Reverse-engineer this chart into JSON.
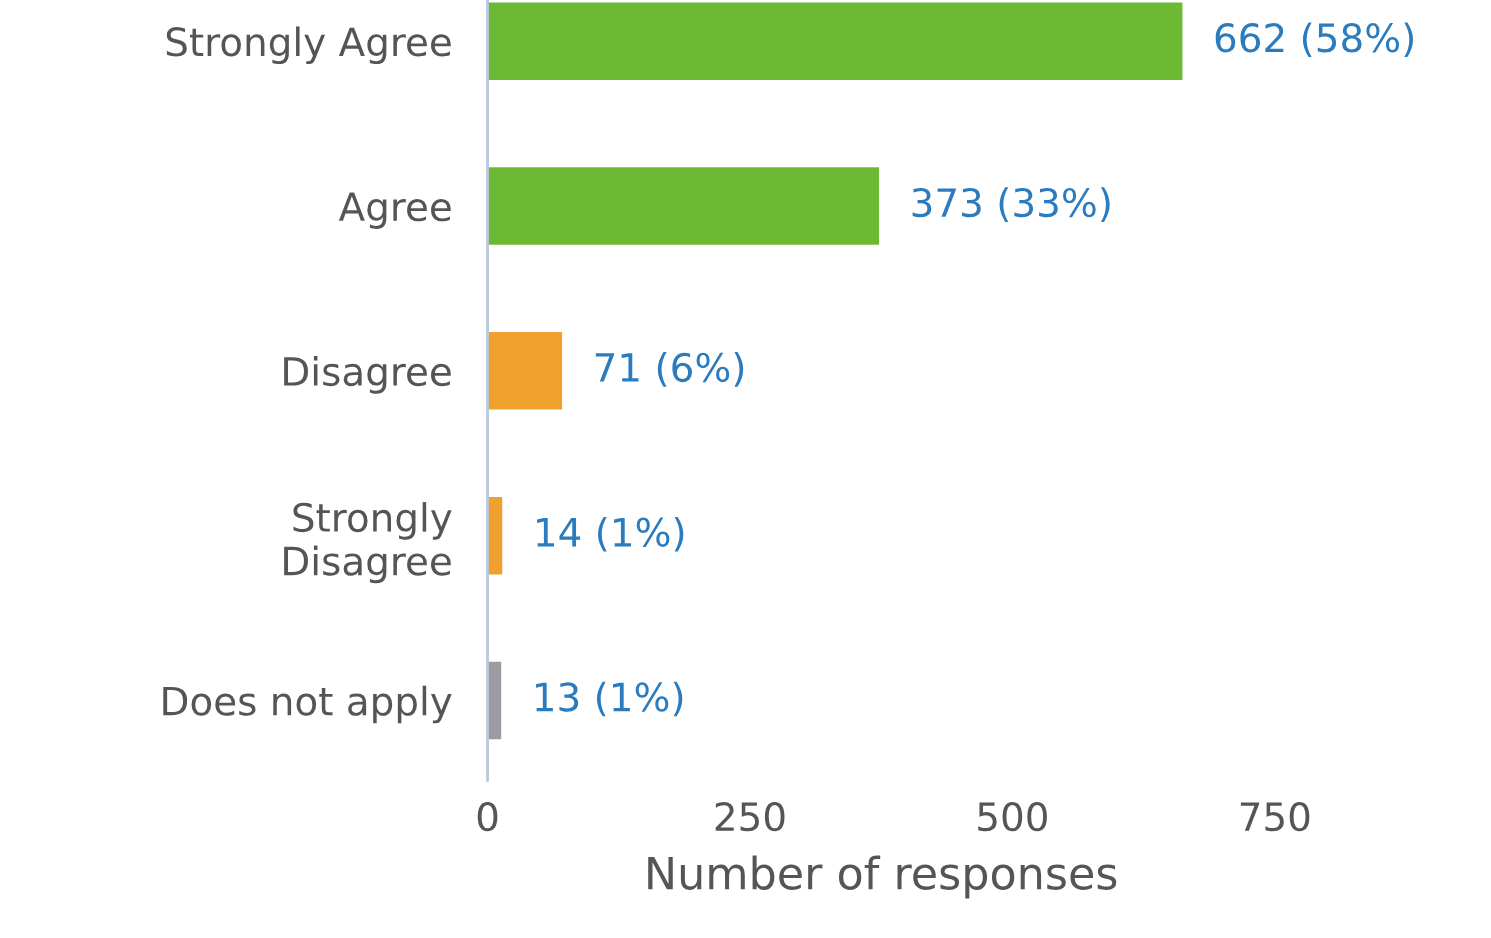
{
  "chart_data": {
    "type": "bar",
    "orientation": "horizontal",
    "xlabel": "Number of responses",
    "categories": [
      "Strongly Agree",
      "Agree",
      "Disagree",
      "Strongly\nDisagree",
      "Does not apply"
    ],
    "values": [
      662,
      373,
      71,
      14,
      13
    ],
    "colors": [
      "#6cb934",
      "#6cb934",
      "#f0a02c",
      "#f0a02c",
      "#9a9ca1"
    ],
    "value_labels": [
      "662 (58%)",
      "373 (33%)",
      "71 (6%)",
      "14 (1%)",
      "13 (1%)"
    ],
    "xlim": [
      0,
      750
    ],
    "xticks": [
      0,
      250,
      500,
      750
    ],
    "grid": false,
    "legend": false
  }
}
